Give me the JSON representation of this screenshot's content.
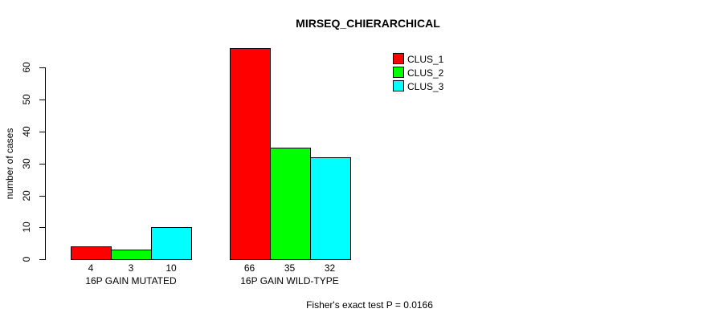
{
  "chart_data": {
    "type": "bar",
    "title": "MIRSEQ_CHIERARCHICAL",
    "ylabel": "number of cases",
    "xlabel": "",
    "categories": [
      "16P GAIN MUTATED",
      "16P GAIN WILD-TYPE"
    ],
    "series": [
      {
        "name": "CLUS_1",
        "color": "#ff0000",
        "values": [
          4,
          66
        ]
      },
      {
        "name": "CLUS_2",
        "color": "#00ff00",
        "values": [
          3,
          35
        ]
      },
      {
        "name": "CLUS_3",
        "color": "#00ffff",
        "values": [
          10,
          32
        ]
      }
    ],
    "bar_value_labels": [
      [
        "4",
        "3",
        "10"
      ],
      [
        "66",
        "35",
        "32"
      ]
    ],
    "yticks": [
      "0",
      "10",
      "20",
      "30",
      "40",
      "50",
      "60"
    ],
    "ylim": [
      0,
      66
    ],
    "grid": false,
    "legend_position": "top-right",
    "legend_entries": [
      "CLUS_1",
      "CLUS_2",
      "CLUS_3"
    ],
    "annotation": "Fisher's exact test P = 0.0166",
    "colors": {
      "clus_1": "#ff0000",
      "clus_2": "#00ff00",
      "clus_3": "#00ffff",
      "axis": "#000000",
      "background": "#ffffff"
    }
  }
}
